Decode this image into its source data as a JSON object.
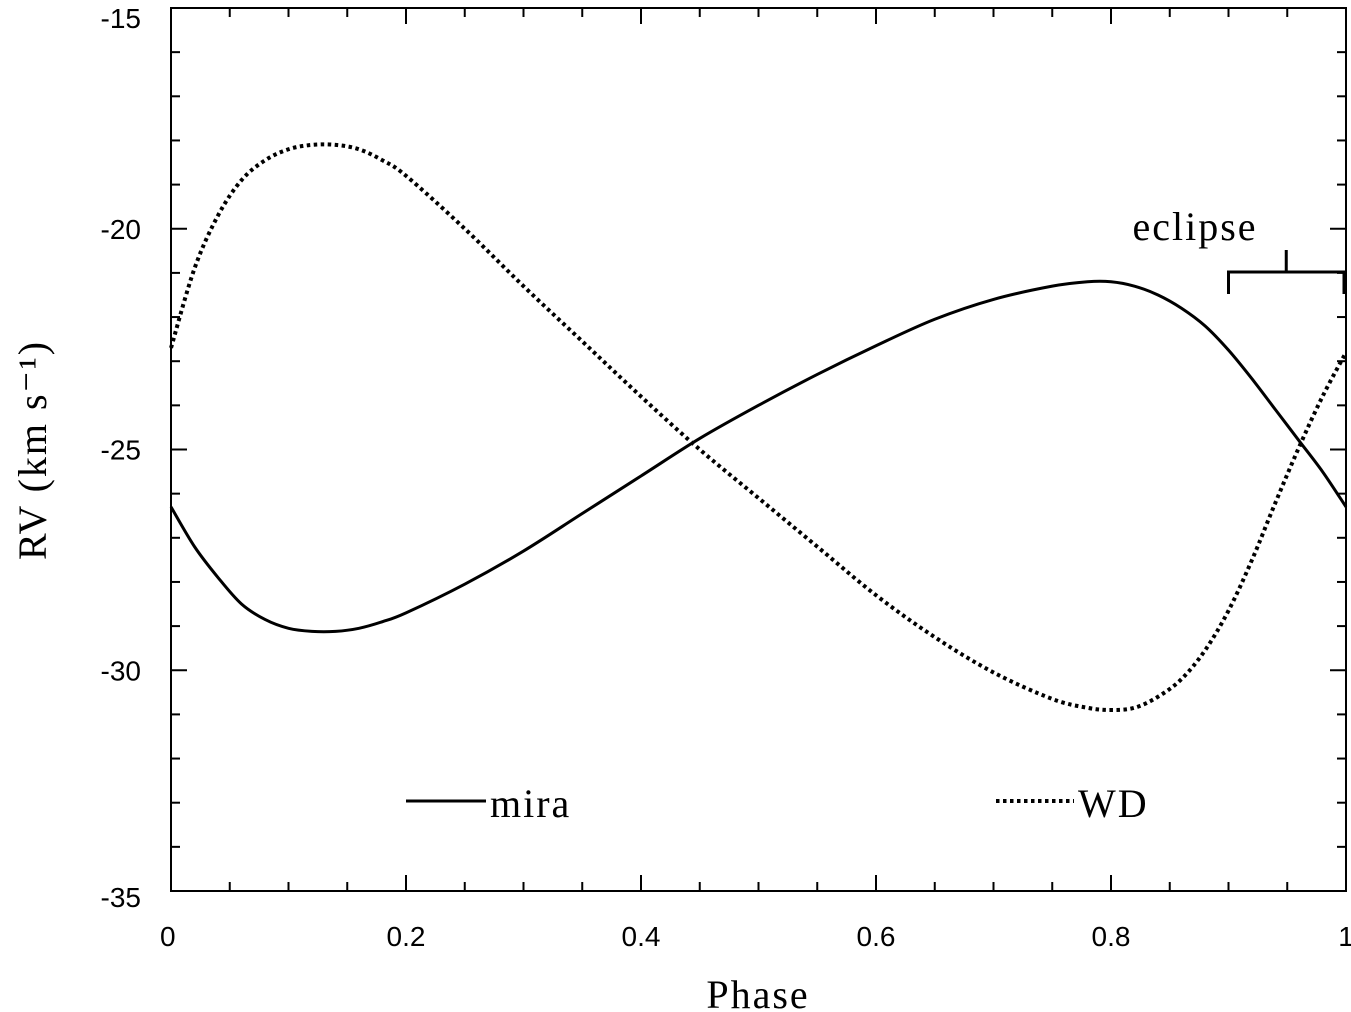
{
  "chart_data": {
    "type": "line",
    "xlabel": "Phase",
    "ylabel": "RV (km s⁻¹)",
    "xlim": [
      0,
      1
    ],
    "ylim": [
      -35,
      -15
    ],
    "x_ticks": [
      "0",
      "0.2",
      "0.4",
      "0.6",
      "0.8",
      "1"
    ],
    "y_ticks": [
      "-15",
      "-20",
      "-25",
      "-30",
      "-35"
    ],
    "grid": false,
    "legend_placement": "bottom",
    "series": [
      {
        "name": "mira",
        "style": "solid",
        "color": "#000000",
        "x": [
          0.0,
          0.02,
          0.04,
          0.06,
          0.08,
          0.1,
          0.12,
          0.14,
          0.16,
          0.18,
          0.2,
          0.25,
          0.3,
          0.35,
          0.4,
          0.45,
          0.5,
          0.55,
          0.6,
          0.65,
          0.7,
          0.75,
          0.78,
          0.8,
          0.82,
          0.84,
          0.86,
          0.88,
          0.9,
          0.92,
          0.94,
          0.96,
          0.98,
          1.0
        ],
        "values": [
          -26.3,
          -27.2,
          -27.9,
          -28.5,
          -28.85,
          -29.05,
          -29.12,
          -29.12,
          -29.05,
          -28.9,
          -28.7,
          -28.05,
          -27.3,
          -26.45,
          -25.6,
          -24.75,
          -24.0,
          -23.3,
          -22.65,
          -22.05,
          -21.6,
          -21.3,
          -21.2,
          -21.2,
          -21.3,
          -21.5,
          -21.8,
          -22.2,
          -22.75,
          -23.4,
          -24.1,
          -24.8,
          -25.5,
          -26.3
        ]
      },
      {
        "name": "WD",
        "style": "dotted",
        "color": "#000000",
        "x": [
          0.0,
          0.02,
          0.04,
          0.06,
          0.08,
          0.1,
          0.12,
          0.14,
          0.16,
          0.18,
          0.2,
          0.25,
          0.3,
          0.35,
          0.4,
          0.45,
          0.5,
          0.55,
          0.6,
          0.65,
          0.7,
          0.75,
          0.78,
          0.8,
          0.82,
          0.84,
          0.86,
          0.88,
          0.9,
          0.92,
          0.94,
          0.96,
          0.98,
          1.0
        ],
        "values": [
          -22.7,
          -20.9,
          -19.7,
          -18.9,
          -18.45,
          -18.2,
          -18.1,
          -18.1,
          -18.2,
          -18.45,
          -18.8,
          -20.0,
          -21.3,
          -22.55,
          -23.8,
          -25.0,
          -26.1,
          -27.2,
          -28.3,
          -29.25,
          -30.05,
          -30.65,
          -30.85,
          -30.9,
          -30.85,
          -30.6,
          -30.2,
          -29.55,
          -28.65,
          -27.5,
          -26.2,
          -24.95,
          -23.8,
          -22.8
        ]
      }
    ],
    "annotations": [
      {
        "text": "eclipse",
        "x_range": [
          0.9,
          1.0
        ],
        "y": -21.0
      }
    ]
  }
}
